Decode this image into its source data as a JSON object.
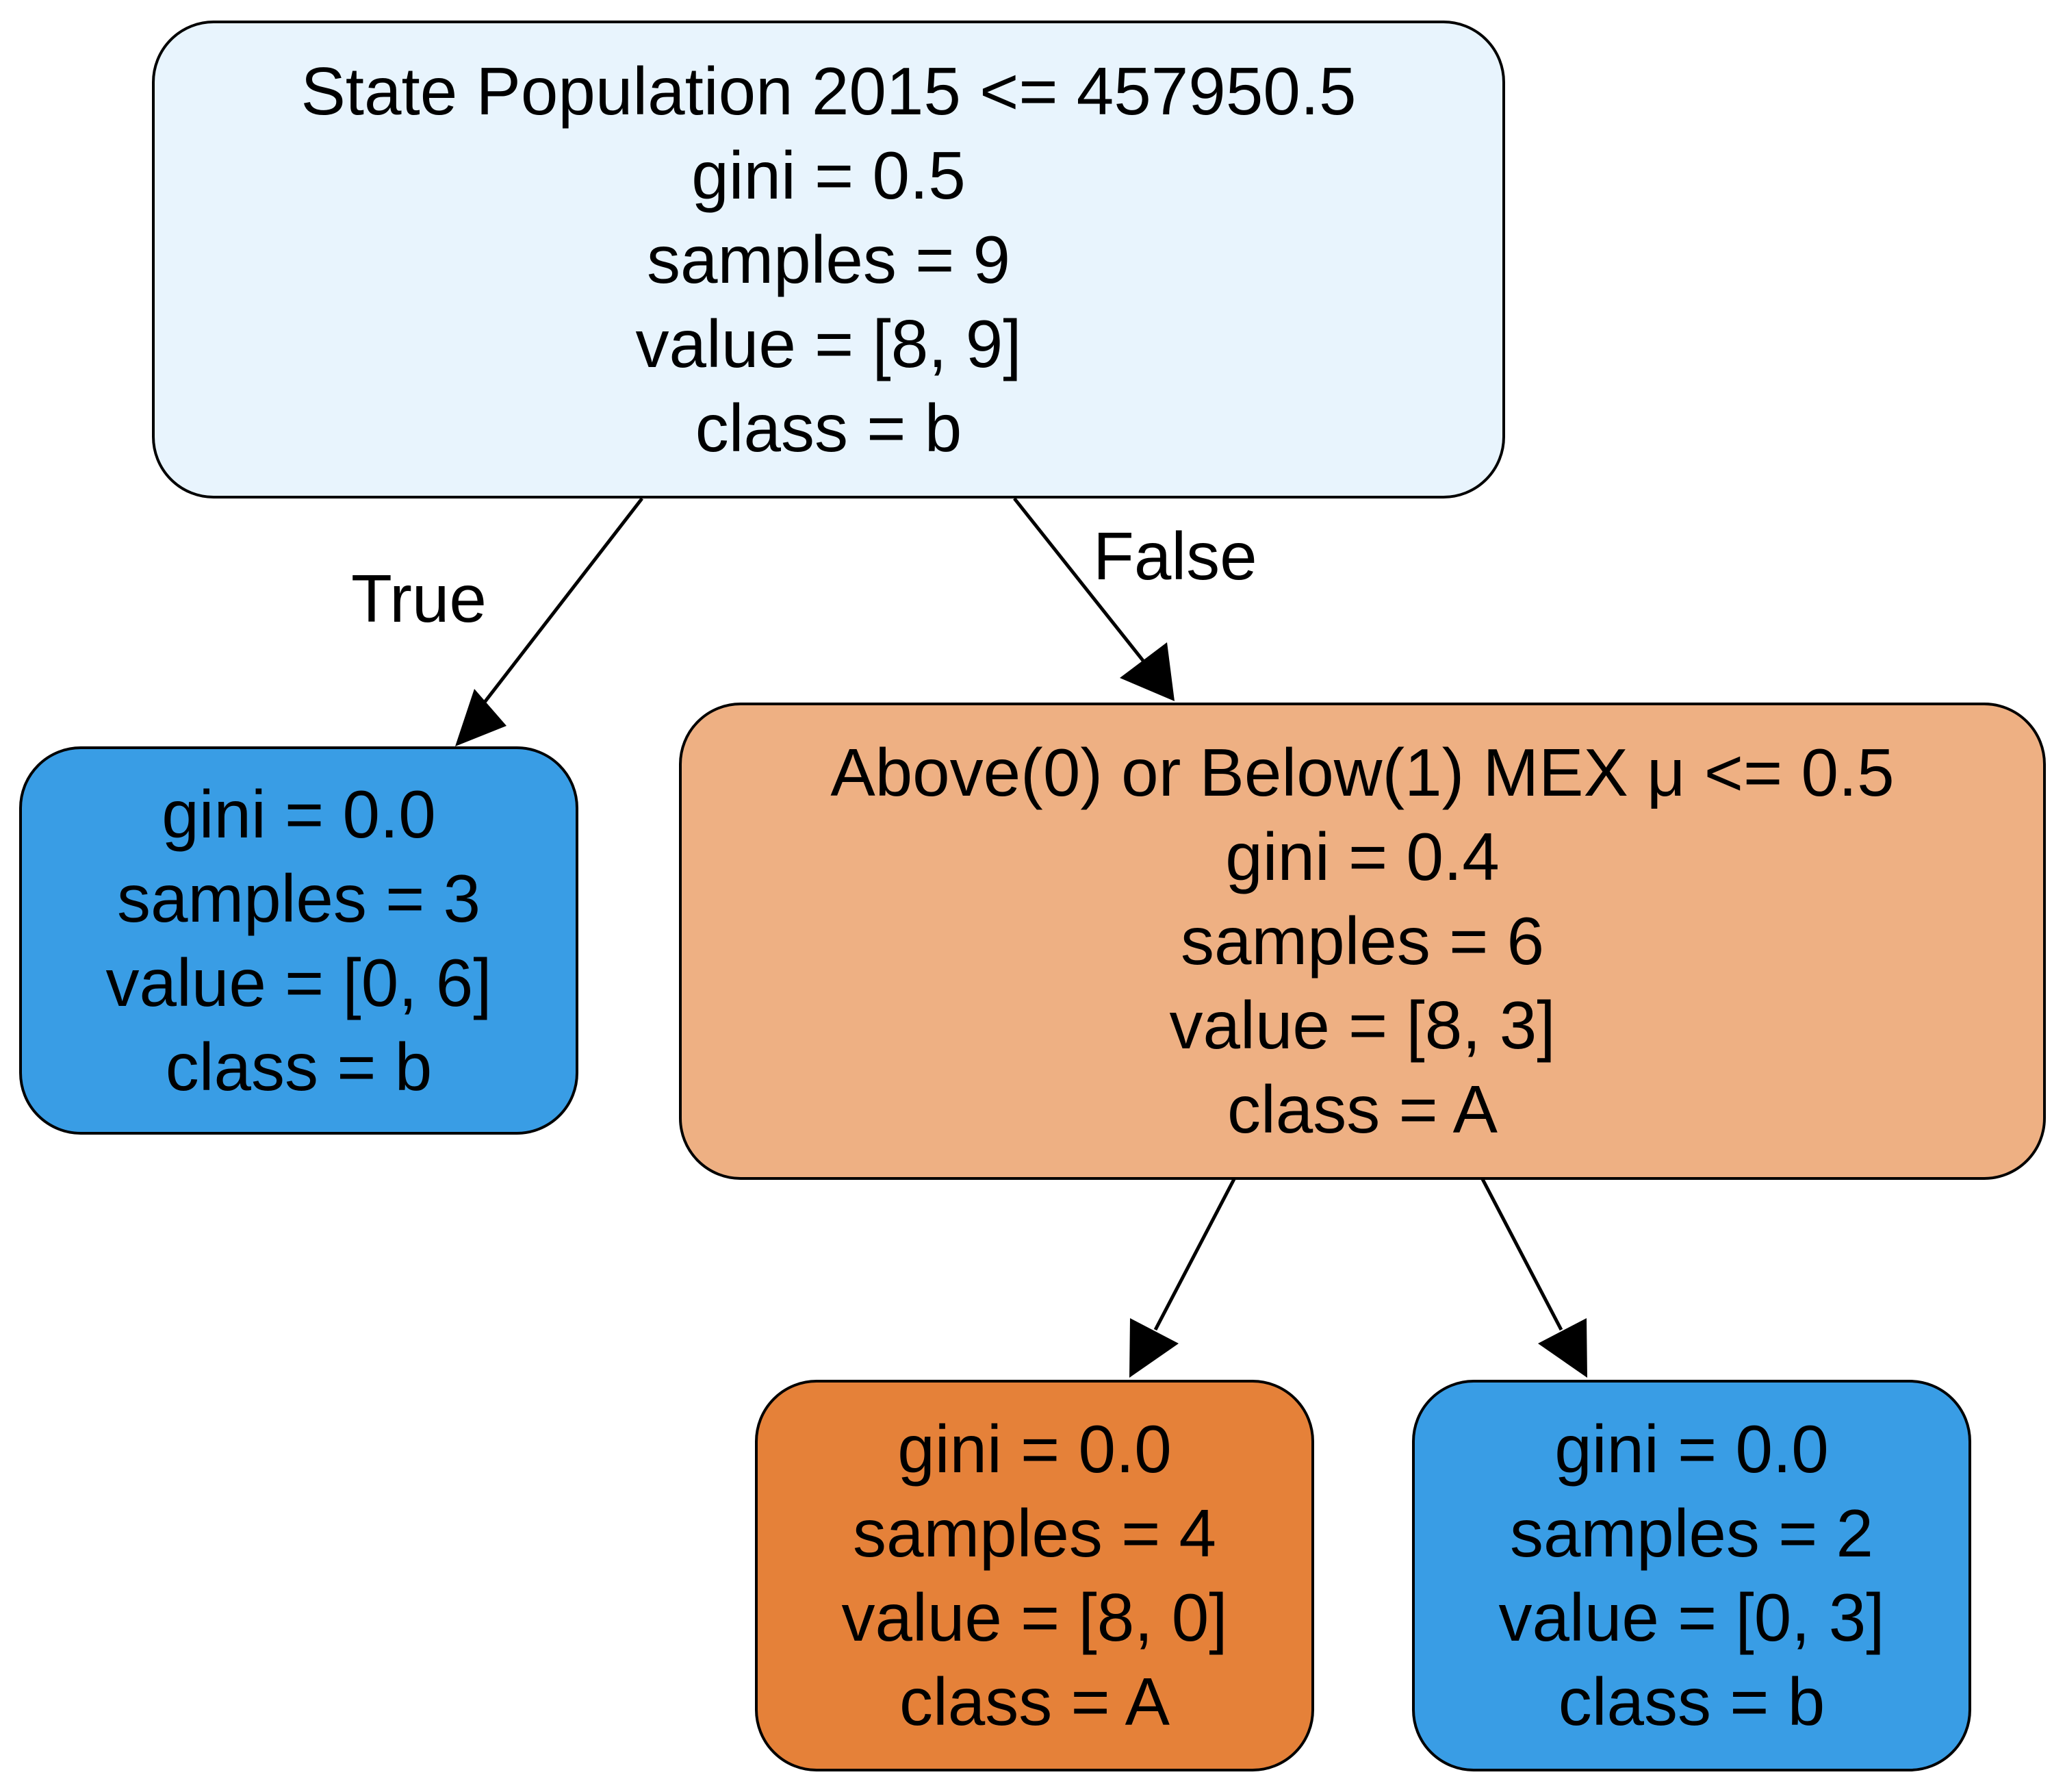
{
  "colors": {
    "root_fill": "#e8f4fd",
    "left_leaf_fill": "#399de5",
    "split_fill": "#eeb083",
    "leaf_a_fill": "#e58139",
    "leaf_b_fill": "#399de5",
    "edge_stroke": "#000000",
    "node_border": "#000000"
  },
  "nodes": {
    "root": {
      "condition": "State Population 2015 <= 457950.5",
      "gini": "gini = 0.5",
      "samples": "samples = 9",
      "value": "value = [8, 9]",
      "class": "class = b"
    },
    "left_leaf": {
      "gini": "gini = 0.0",
      "samples": "samples = 3",
      "value": "value = [0, 6]",
      "class": "class = b"
    },
    "split": {
      "condition": "Above(0) or Below(1) MEX μ <= 0.5",
      "gini": "gini = 0.4",
      "samples": "samples = 6",
      "value": "value = [8, 3]",
      "class": "class = A"
    },
    "leaf_a": {
      "gini": "gini = 0.0",
      "samples": "samples = 4",
      "value": "value = [8, 0]",
      "class": "class = A"
    },
    "leaf_b": {
      "gini": "gini = 0.0",
      "samples": "samples = 2",
      "value": "value = [0, 3]",
      "class": "class = b"
    }
  },
  "edges": {
    "true_label": "True",
    "false_label": "False"
  }
}
